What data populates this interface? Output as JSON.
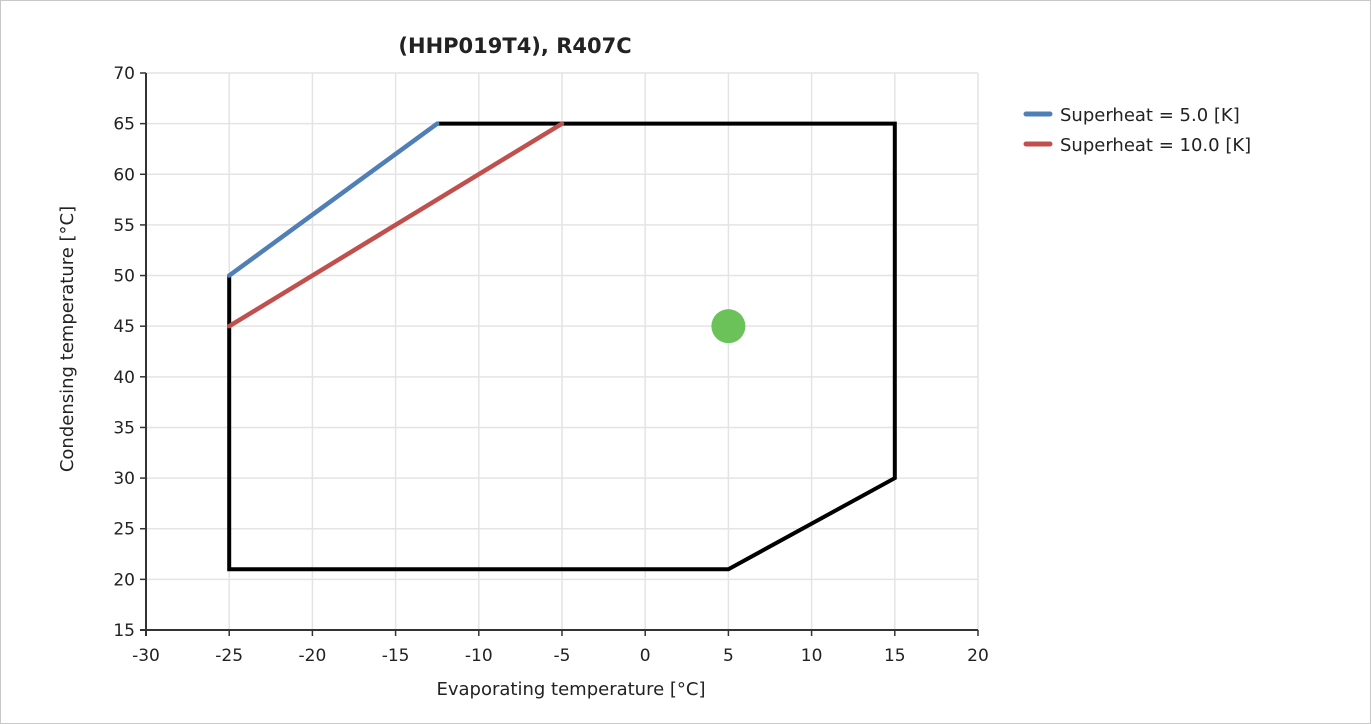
{
  "chart_data": {
    "type": "line",
    "title": "(HHP019T4), R407C",
    "xlabel": "Evaporating temperature [°C]",
    "ylabel": "Condensing temperature [°C]",
    "xlim": [
      -30,
      20
    ],
    "ylim": [
      15,
      70
    ],
    "xticks": [
      -30,
      -25,
      -20,
      -15,
      -10,
      -5,
      0,
      5,
      10,
      15,
      20
    ],
    "yticks": [
      15,
      20,
      25,
      30,
      35,
      40,
      45,
      50,
      55,
      60,
      65,
      70
    ],
    "grid": true,
    "legend_position": "top-right",
    "envelope": {
      "color": "#000000",
      "points": [
        [
          -25,
          50
        ],
        [
          -25,
          21
        ],
        [
          5,
          21
        ],
        [
          15,
          30
        ],
        [
          15,
          65
        ],
        [
          -12.5,
          65
        ]
      ]
    },
    "series": [
      {
        "name": "Superheat = 5.0 [K]",
        "color": "#4f7fb5",
        "x": [
          -25,
          -12.5
        ],
        "y": [
          50,
          65
        ]
      },
      {
        "name": "Superheat = 10.0 [K]",
        "color": "#c0504d",
        "x": [
          -25,
          -5
        ],
        "y": [
          45,
          65
        ]
      }
    ],
    "operating_point": {
      "x": 5,
      "y": 45,
      "color": "#6ac259"
    }
  }
}
